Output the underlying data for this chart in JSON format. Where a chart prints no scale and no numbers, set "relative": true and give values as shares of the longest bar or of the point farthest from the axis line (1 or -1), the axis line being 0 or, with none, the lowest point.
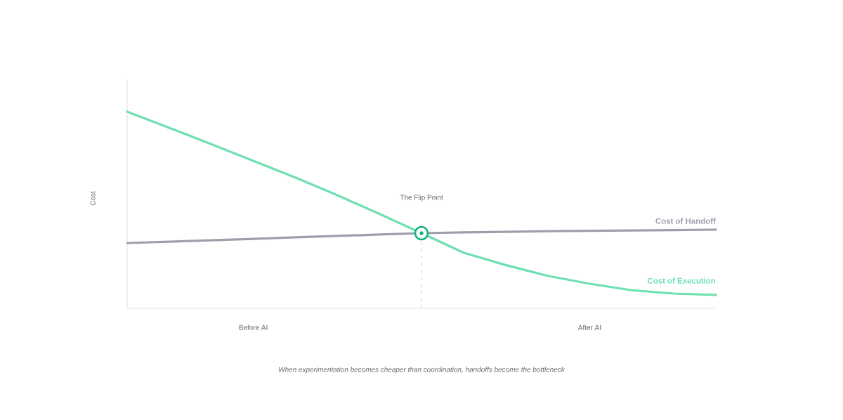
{
  "chart_data": {
    "type": "line",
    "relative": true,
    "ylabel": "Cost",
    "legend": false,
    "grid": false,
    "marker": "none",
    "categories": [
      null,
      null,
      null,
      "Before AI",
      null,
      null,
      null,
      null,
      null,
      null,
      null,
      "After AI",
      null,
      null,
      null
    ],
    "series": [
      {
        "name": "Cost of Execution",
        "color": "#6ee0b0",
        "values": [
          1.0,
          0.918,
          0.835,
          0.75,
          0.665,
          0.575,
          0.48,
          0.382,
          0.283,
          0.22,
          0.165,
          0.125,
          0.092,
          0.075,
          0.068
        ]
      },
      {
        "name": "Cost of Handoff",
        "color": "#9ca0ab",
        "values": [
          0.332,
          0.339,
          0.346,
          0.353,
          0.361,
          0.368,
          0.375,
          0.382,
          0.386,
          0.389,
          0.392,
          0.394,
          0.396,
          0.398,
          0.4
        ]
      },
      {
        "type": "scatter",
        "marker": "circle",
        "color": "#10b37a",
        "values": [
          null,
          null,
          null,
          null,
          null,
          null,
          null,
          0.382,
          null,
          null,
          null,
          null,
          null,
          null,
          null
        ]
      }
    ],
    "annotations": [
      "The Flip Point",
      "When experimentation becomes cheaper than coordination, handoffs become the bottleneck"
    ]
  }
}
